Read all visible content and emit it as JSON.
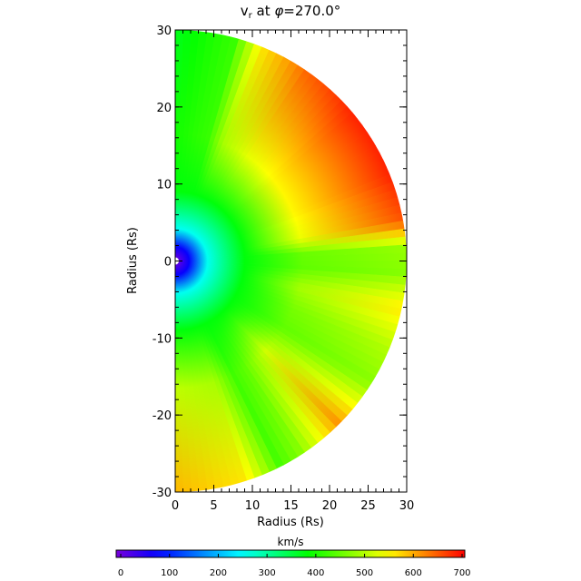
{
  "chart_data": {
    "type": "heatmap",
    "title_base": "v",
    "title_sub": "r",
    "title_mid": " at ",
    "title_phi": "φ",
    "title_value": "=270.0°",
    "xlabel": "Radius (Rs)",
    "ylabel": "Radius (Rs)",
    "xlim": [
      0,
      30
    ],
    "ylim": [
      -30,
      30
    ],
    "x_ticks": [
      "0",
      "5",
      "10",
      "15",
      "20",
      "25",
      "30"
    ],
    "y_ticks": [
      "-30",
      "-20",
      "-10",
      "0",
      "10",
      "20",
      "30"
    ],
    "domain_shape": "half-disk, radius 30 Rs, inner boundary ~1 Rs",
    "colorbar": {
      "label": "km/s",
      "range": [
        0,
        700
      ],
      "ticks": [
        "0",
        "100",
        "200",
        "300",
        "400",
        "500",
        "600",
        "700"
      ],
      "colormap": "rainbow (violet-blue-cyan-green-yellow-red)"
    },
    "radial_profile_at_30Rs": [
      {
        "angle_deg": 90,
        "v": 370
      },
      {
        "angle_deg": 75,
        "v": 420
      },
      {
        "angle_deg": 68,
        "v": 560
      },
      {
        "angle_deg": 55,
        "v": 640
      },
      {
        "angle_deg": 40,
        "v": 680
      },
      {
        "angle_deg": 22,
        "v": 680
      },
      {
        "angle_deg": 10,
        "v": 650
      },
      {
        "angle_deg": 3,
        "v": 480
      },
      {
        "angle_deg": -3,
        "v": 470
      },
      {
        "angle_deg": -12,
        "v": 560
      },
      {
        "angle_deg": -22,
        "v": 500
      },
      {
        "angle_deg": -32,
        "v": 470
      },
      {
        "angle_deg": -45,
        "v": 610
      },
      {
        "angle_deg": -57,
        "v": 470
      },
      {
        "angle_deg": -63,
        "v": 430
      },
      {
        "angle_deg": -72,
        "v": 560
      },
      {
        "angle_deg": -90,
        "v": 590
      }
    ]
  }
}
